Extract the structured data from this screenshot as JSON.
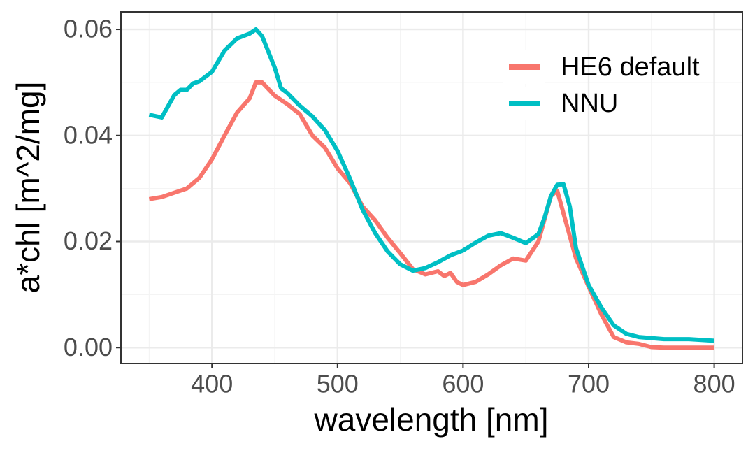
{
  "chart_data": {
    "type": "line",
    "x_label": "wavelength [nm]",
    "y_label": "a*chl [m^2/mg]",
    "xlim": [
      327.5,
      822.5
    ],
    "ylim": [
      -0.003,
      0.0633
    ],
    "xticks": [
      400,
      500,
      600,
      700,
      800
    ],
    "yticks": [
      {
        "value": 0,
        "label": "0.00"
      },
      0.02,
      0.04,
      0.06
    ],
    "minor_xticks": [
      350,
      450,
      550,
      650,
      750
    ],
    "minor_yticks": [
      0.01,
      0.03,
      0.05
    ],
    "grid": true,
    "legend_position": "top-right",
    "series": [
      {
        "name": "HE6 default",
        "color": "#f8766d",
        "x": [
          350,
          360,
          370,
          380,
          390,
          400,
          410,
          420,
          430,
          435,
          440,
          450,
          460,
          470,
          480,
          490,
          500,
          510,
          520,
          530,
          540,
          550,
          560,
          570,
          580,
          585,
          590,
          595,
          600,
          610,
          620,
          630,
          640,
          650,
          660,
          670,
          675,
          680,
          690,
          700,
          710,
          720,
          730,
          740,
          750,
          760,
          770,
          780,
          790,
          800
        ],
        "values": [
          0.028,
          0.0284,
          0.0292,
          0.03,
          0.032,
          0.0355,
          0.04,
          0.0443,
          0.047,
          0.05,
          0.05,
          0.0475,
          0.0459,
          0.044,
          0.04,
          0.0377,
          0.0338,
          0.031,
          0.0266,
          0.024,
          0.0207,
          0.0178,
          0.0148,
          0.0138,
          0.0144,
          0.0135,
          0.0141,
          0.0124,
          0.0118,
          0.0124,
          0.0138,
          0.0155,
          0.0168,
          0.0164,
          0.02,
          0.0286,
          0.0296,
          0.0253,
          0.0168,
          0.0115,
          0.0063,
          0.002,
          0.001,
          0.0007,
          0.0001,
          0,
          0,
          0,
          0,
          0
        ]
      },
      {
        "name": "NNU",
        "color": "#00bfc4",
        "x": [
          350,
          360,
          370,
          375,
          380,
          385,
          390,
          400,
          410,
          420,
          430,
          435,
          440,
          450,
          455,
          460,
          470,
          480,
          490,
          500,
          510,
          520,
          530,
          540,
          550,
          560,
          570,
          580,
          590,
          600,
          610,
          620,
          630,
          640,
          650,
          660,
          665,
          670,
          675,
          680,
          685,
          690,
          700,
          710,
          720,
          730,
          740,
          750,
          760,
          780,
          800
        ],
        "values": [
          0.0439,
          0.0434,
          0.0476,
          0.0486,
          0.0486,
          0.0498,
          0.0502,
          0.052,
          0.056,
          0.0583,
          0.0592,
          0.06,
          0.0587,
          0.0528,
          0.0489,
          0.048,
          0.0456,
          0.0436,
          0.041,
          0.0371,
          0.0318,
          0.026,
          0.0216,
          0.0181,
          0.0157,
          0.0145,
          0.015,
          0.0161,
          0.0174,
          0.0183,
          0.0198,
          0.0211,
          0.0216,
          0.0207,
          0.0197,
          0.0214,
          0.0246,
          0.0286,
          0.0307,
          0.0308,
          0.0266,
          0.0187,
          0.0118,
          0.0076,
          0.0042,
          0.0026,
          0.002,
          0.0018,
          0.0016,
          0.0016,
          0.0013
        ]
      }
    ]
  }
}
